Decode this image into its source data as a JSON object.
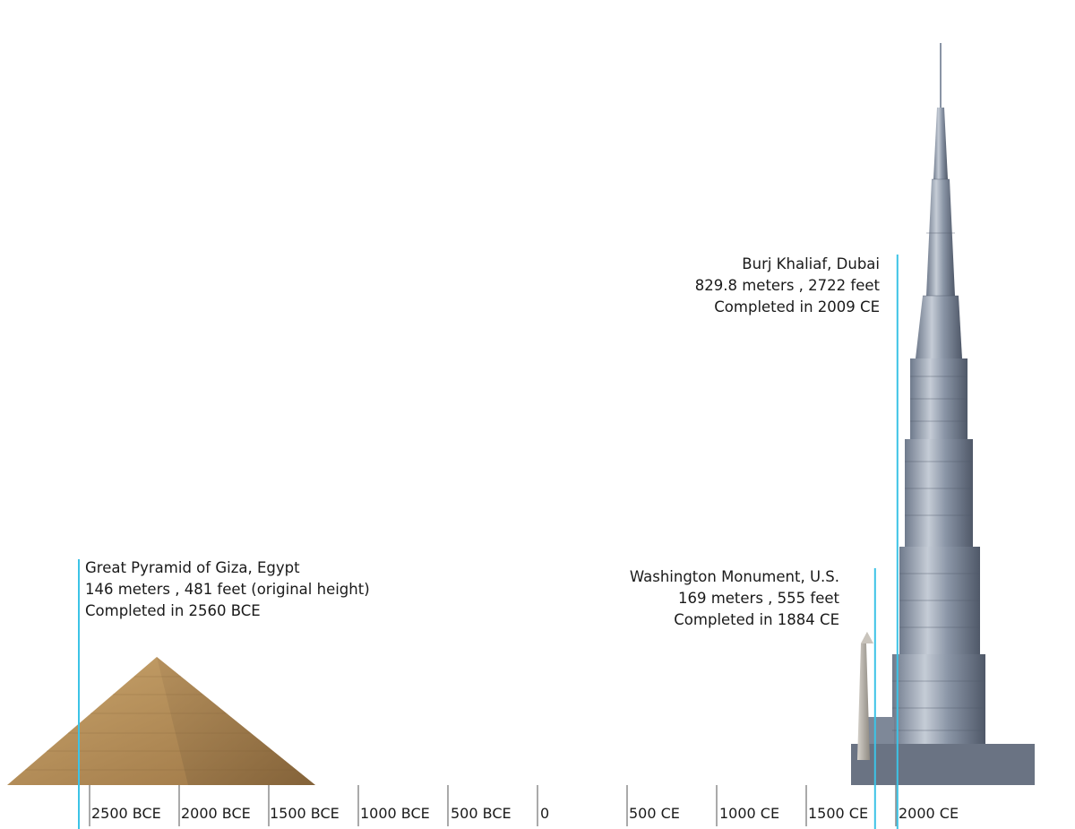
{
  "timeline": {
    "ticks": [
      "2500 BCE",
      "2000 BCE",
      "1500 BCE",
      "1000 BCE",
      "500 BCE",
      "0",
      "500 CE",
      "1000 CE",
      "1500 CE",
      "2000 CE"
    ]
  },
  "structures": [
    {
      "name": "Great Pyramid of Giza, Egypt",
      "height": "146 meters , 481 feet (original height)",
      "completed": "Completed in 2560 BCE",
      "year": -2560,
      "height_m": 146,
      "image": "pyramid"
    },
    {
      "name": "Washington Monument, U.S.",
      "height": "169 meters , 555 feet",
      "completed": "Completed in 1884 CE",
      "year": 1884,
      "height_m": 169,
      "image": "obelisk"
    },
    {
      "name": "Burj Khaliaf, Dubai",
      "height": "829.8 meters , 2722 feet",
      "completed": "Completed in 2009 CE",
      "year": 2009,
      "height_m": 829.8,
      "image": "skyscraper"
    }
  ],
  "colors": {
    "marker_line": "#3cc3e6",
    "axis": "#555555",
    "pyramid": "#b08a55",
    "tower": "#8e98a8"
  }
}
